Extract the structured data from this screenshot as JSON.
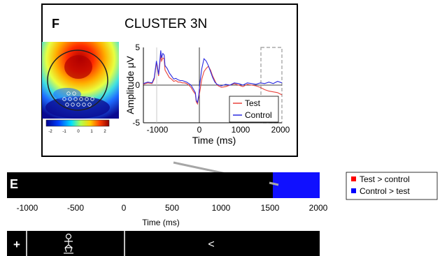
{
  "panel_f": {
    "letter": "F",
    "title": "CLUSTER 3N",
    "colorbar_ticks": [
      "-2",
      "-1",
      "0",
      "1",
      "2"
    ],
    "erp": {
      "ylabel": "Amplitude μV",
      "xlabel": "Time (ms)",
      "y_ticks": [
        "5",
        "0",
        "-5"
      ],
      "x_ticks": [
        "-1000",
        "0",
        "1000",
        "2000"
      ],
      "legend": [
        {
          "name": "Test",
          "color": "#e8423c"
        },
        {
          "name": "Control",
          "color": "#2a2ae0"
        }
      ]
    }
  },
  "panel_e": {
    "letter": "E",
    "bar_colors": {
      "background": "#000000",
      "highlight": "#1010ff"
    },
    "highlight_range_ms": [
      1550,
      2000
    ],
    "x_ticks": [
      "-1000",
      "-500",
      "0",
      "500",
      "1000",
      "1500",
      "2000"
    ],
    "xlabel": "Time (ms)"
  },
  "legend_right": [
    {
      "label": "Test > control",
      "color": "#ff0000"
    },
    {
      "label": "Control > test",
      "color": "#0000ff"
    }
  ],
  "trial_bar": {
    "fixation": "+",
    "figure_icon": "person-figure-icon",
    "arrow": "<"
  },
  "chart_data": {
    "type": "line",
    "xlabel": "Time (ms)",
    "ylabel": "Amplitude μV",
    "xlim": [
      -1200,
      2000
    ],
    "ylim": [
      -5,
      5
    ],
    "series": [
      {
        "name": "Test",
        "x": [
          -1200,
          -1100,
          -1000,
          -950,
          -900,
          -880,
          -850,
          -820,
          -800,
          -780,
          -750,
          -720,
          -700,
          -650,
          -600,
          -550,
          -500,
          -450,
          -400,
          -350,
          -300,
          -250,
          -200,
          -150,
          -100,
          -50,
          0,
          20,
          50,
          80,
          100,
          150,
          200,
          250,
          300,
          350,
          400,
          450,
          500,
          600,
          700,
          800,
          900,
          1000,
          1100,
          1200,
          1300,
          1400,
          1500,
          1600,
          1700,
          1800,
          1900,
          2000
        ],
        "y": [
          0.1,
          0.3,
          0.2,
          0.8,
          3.0,
          2.4,
          1.2,
          2.8,
          4.0,
          3.2,
          3.6,
          3.5,
          2.0,
          1.5,
          1.0,
          0.8,
          0.5,
          0.6,
          0.4,
          0.4,
          0.3,
          0.3,
          0.2,
          0.0,
          -0.3,
          -0.8,
          -1.2,
          -2.2,
          -2.5,
          -1.5,
          -1.0,
          0.8,
          1.8,
          2.2,
          2.5,
          2.0,
          1.2,
          0.6,
          0.0,
          -0.3,
          -0.2,
          0.0,
          0.2,
          0.0,
          -0.2,
          0.1,
          0.0,
          -0.1,
          -0.3,
          -0.6,
          -0.8,
          -0.9,
          -1.0,
          -1.3
        ]
      },
      {
        "name": "Control",
        "x": [
          -1200,
          -1100,
          -1000,
          -950,
          -900,
          -880,
          -850,
          -820,
          -800,
          -780,
          -750,
          -720,
          -700,
          -650,
          -600,
          -550,
          -500,
          -450,
          -400,
          -350,
          -300,
          -250,
          -200,
          -150,
          -100,
          -50,
          0,
          20,
          50,
          80,
          100,
          150,
          200,
          250,
          300,
          350,
          400,
          450,
          500,
          600,
          700,
          800,
          900,
          1000,
          1100,
          1200,
          1300,
          1400,
          1500,
          1600,
          1700,
          1800,
          1900,
          2000
        ],
        "y": [
          0.2,
          0.4,
          0.3,
          1.0,
          3.2,
          2.6,
          1.4,
          3.2,
          4.6,
          3.6,
          4.2,
          4.0,
          2.6,
          2.2,
          1.6,
          1.2,
          0.8,
          0.9,
          0.7,
          0.6,
          0.6,
          0.5,
          0.4,
          0.2,
          0.0,
          -0.5,
          -1.0,
          -2.0,
          -2.3,
          -1.3,
          0.0,
          2.2,
          3.5,
          3.2,
          2.6,
          1.8,
          1.0,
          0.4,
          0.1,
          -0.1,
          0.1,
          0.0,
          0.3,
          0.2,
          0.0,
          0.3,
          0.2,
          0.1,
          0.3,
          0.2,
          0.4,
          0.2,
          0.5,
          0.3
        ]
      }
    ],
    "highlight_window_ms": [
      1500,
      2000
    ]
  }
}
